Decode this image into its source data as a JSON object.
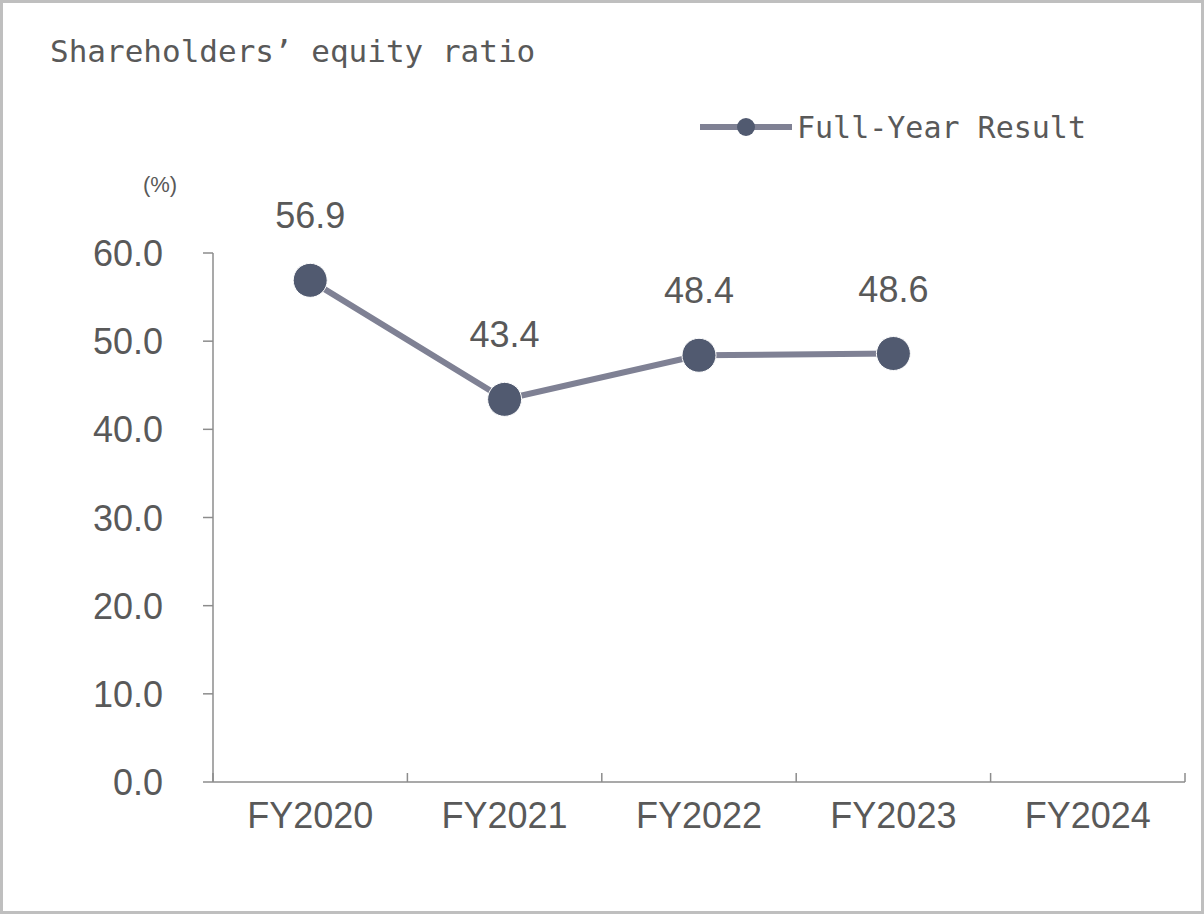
{
  "chart_data": {
    "type": "line",
    "title": "Shareholders’ equity ratio",
    "y_label": "(%)",
    "categories": [
      "FY2020",
      "FY2021",
      "FY2022",
      "FY2023",
      "FY2024"
    ],
    "series": [
      {
        "name": "Full-Year Result",
        "color": "#7f8194",
        "marker": "circle",
        "line_style": "solid",
        "values": [
          56.9,
          43.4,
          48.4,
          48.6,
          null
        ]
      }
    ],
    "ylim": [
      0,
      60
    ],
    "yticks": [
      {
        "value": 0,
        "label": "0.0"
      },
      {
        "value": 10,
        "label": "10.0"
      },
      {
        "value": 20,
        "label": "20.0"
      },
      {
        "value": 30,
        "label": "30.0"
      },
      {
        "value": 40,
        "label": "40.0"
      },
      {
        "value": 50,
        "label": "50.0"
      },
      {
        "value": 60,
        "label": "60.0"
      }
    ],
    "grid": false,
    "legend": "top-right",
    "data_labels": true
  }
}
